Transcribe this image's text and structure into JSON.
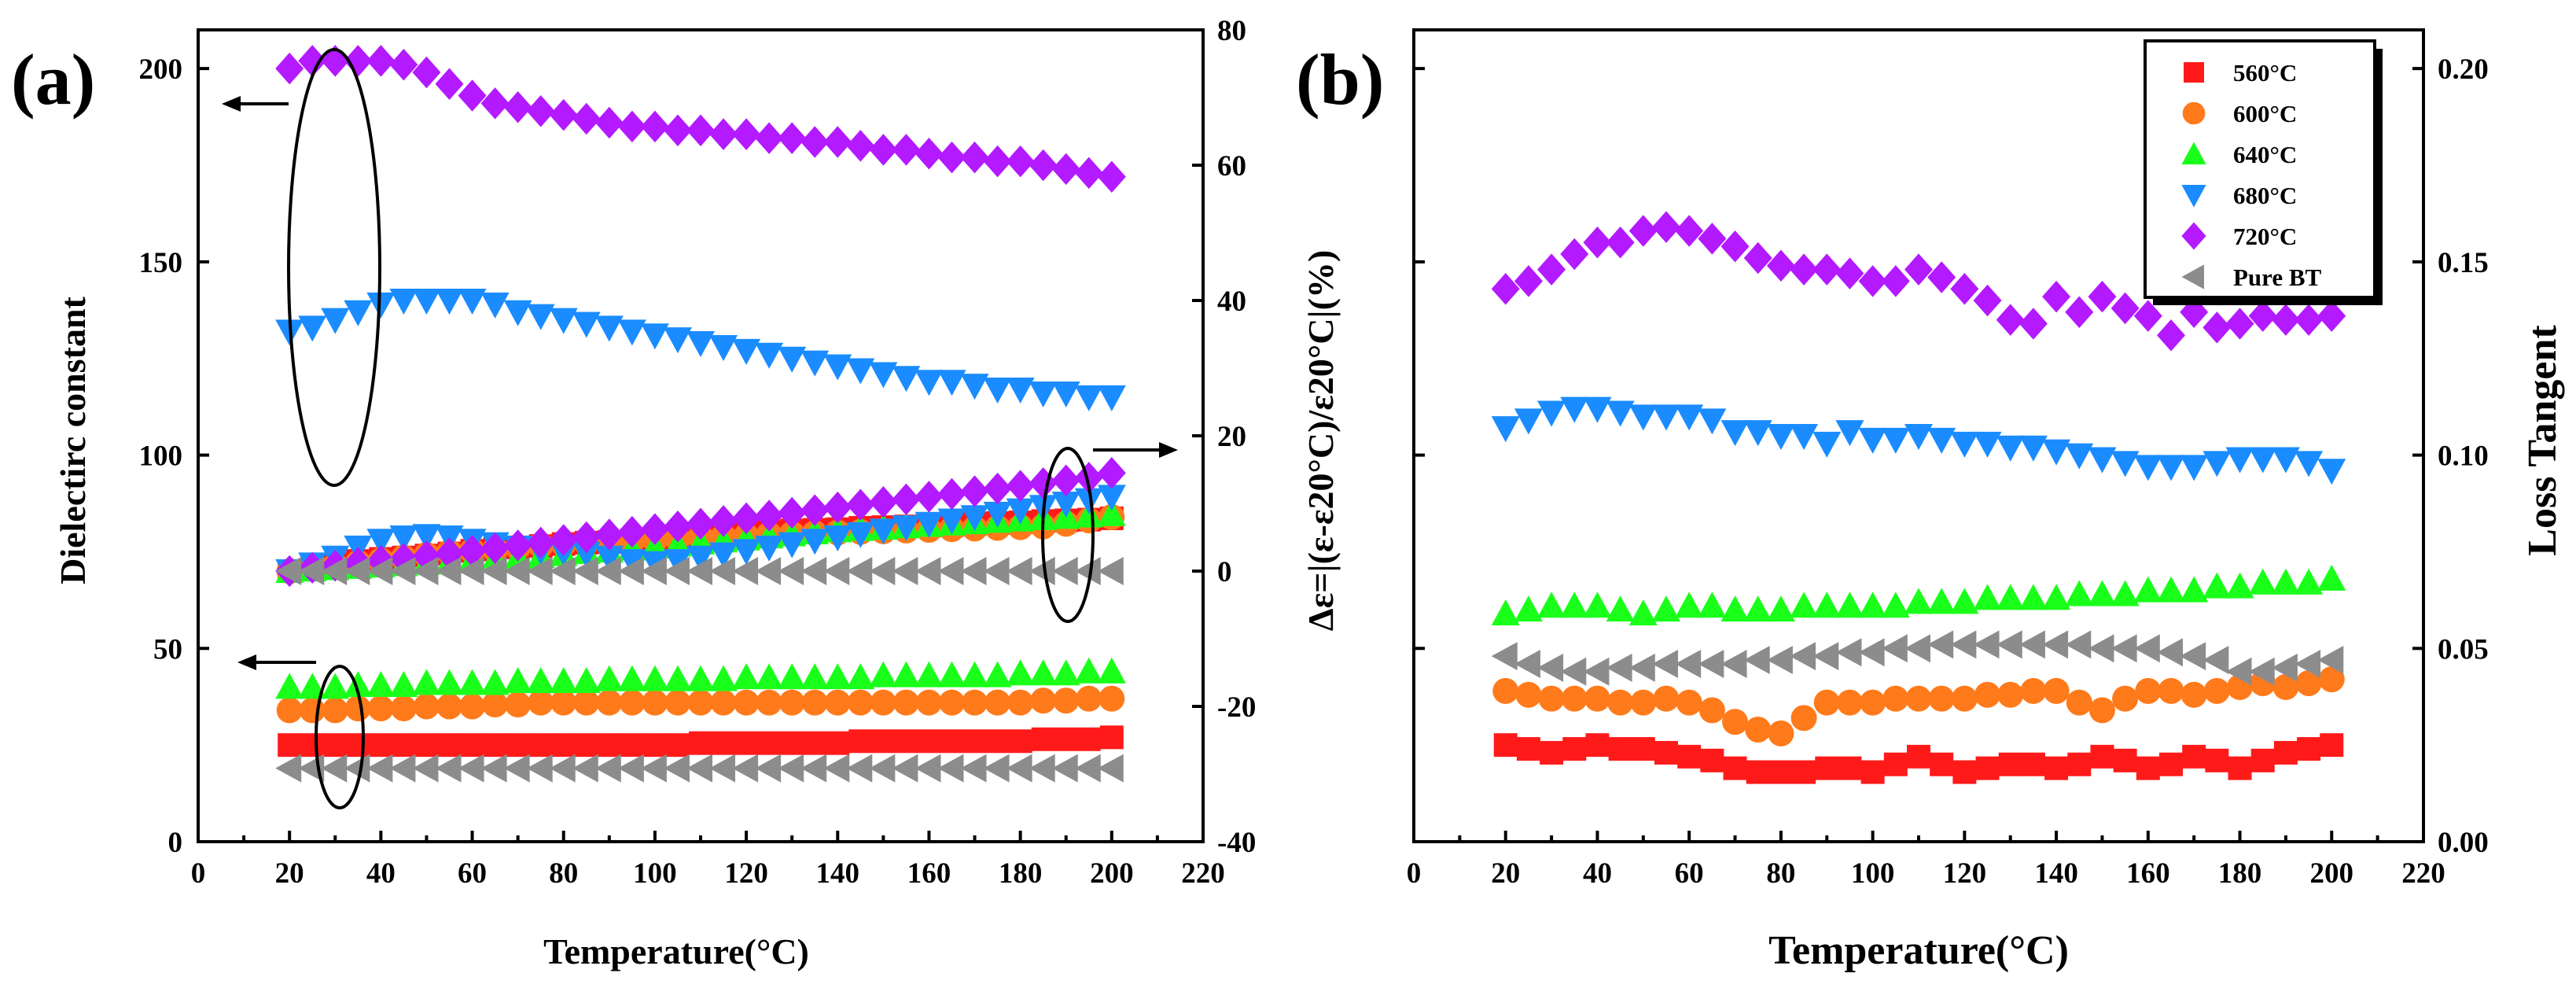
{
  "colors": {
    "560°C": "#ff1a1a",
    "600°C": "#ff7a1a",
    "640°C": "#1aff1a",
    "680°C": "#1a8cff",
    "720°C": "#b31aff",
    "Pure BT": "#8c8c8c"
  },
  "markers": {
    "560°C": "square",
    "600°C": "circle",
    "640°C": "triangle-up",
    "680°C": "triangle-down",
    "720°C": "diamond",
    "Pure BT": "triangle-left"
  },
  "chart_data": [
    {
      "type": "scatter",
      "panel_label": "(a)",
      "xlabel": "Temperature(°C)",
      "ylabel": "Dielectirc constant",
      "y2label": "Δε=|(ε-ε20°C)/ε20°C|(%)",
      "xlim": [
        0,
        220
      ],
      "ylim": [
        0,
        210
      ],
      "y2lim": [
        -40,
        80
      ],
      "x_ticks": [
        "0",
        "20",
        "40",
        "60",
        "80",
        "100",
        "120",
        "140",
        "160",
        "180",
        "200",
        "220"
      ],
      "y_ticks": [
        "0",
        "50",
        "100",
        "150",
        "200"
      ],
      "y2_ticks": [
        "-40",
        "-20",
        "0",
        "20",
        "40",
        "60",
        "80"
      ],
      "x": [
        20,
        25,
        30,
        35,
        40,
        45,
        50,
        55,
        60,
        65,
        70,
        75,
        80,
        85,
        90,
        95,
        100,
        105,
        110,
        115,
        120,
        125,
        130,
        135,
        140,
        145,
        150,
        155,
        160,
        165,
        170,
        175,
        180,
        185,
        190,
        195,
        200
      ],
      "series": [
        {
          "name": "560°C",
          "axis": "left",
          "values": [
            25,
            25,
            25,
            25,
            25,
            25,
            25,
            25,
            25,
            25,
            25,
            25,
            25,
            25,
            25,
            25,
            25,
            25,
            25.5,
            25.5,
            25.5,
            25.5,
            25.5,
            25.5,
            25.5,
            26,
            26,
            26,
            26,
            26,
            26,
            26,
            26,
            26.5,
            26.5,
            26.5,
            27
          ]
        },
        {
          "name": "600°C",
          "axis": "left",
          "values": [
            34,
            34,
            34,
            34.5,
            34.5,
            34.5,
            35,
            35,
            35,
            35.5,
            35.5,
            36,
            36,
            36,
            36,
            36,
            36,
            36,
            36,
            36,
            36,
            36,
            36,
            36,
            36,
            36,
            36,
            36,
            36,
            36,
            36,
            36,
            36,
            36.5,
            36.5,
            37,
            37
          ]
        },
        {
          "name": "640°C",
          "axis": "left",
          "values": [
            40,
            40,
            40,
            40.5,
            40.5,
            40.5,
            41,
            41,
            41,
            41,
            41.5,
            41.5,
            41.5,
            41.5,
            42,
            42,
            42,
            42,
            42,
            42,
            42.5,
            42.5,
            42.5,
            42.5,
            42.5,
            42.5,
            43,
            43,
            43,
            43,
            43,
            43,
            43.5,
            43.5,
            43.5,
            44,
            44
          ]
        },
        {
          "name": "680°C",
          "axis": "left",
          "values": [
            132,
            133,
            135,
            137,
            139,
            140,
            140,
            140,
            140,
            139,
            137,
            136,
            135,
            134,
            133,
            132,
            131,
            130,
            129,
            128,
            127,
            126,
            125,
            124,
            123,
            122,
            121,
            120,
            119,
            119,
            118,
            117,
            117,
            116,
            116,
            115,
            115
          ]
        },
        {
          "name": "720°C",
          "axis": "left",
          "values": [
            200,
            202,
            202,
            202,
            202,
            201,
            199,
            196,
            193,
            191,
            190,
            189,
            188,
            187,
            186,
            185,
            185,
            184,
            184,
            183,
            183,
            182,
            182,
            181,
            181,
            180,
            179,
            179,
            178,
            177,
            177,
            176,
            176,
            175,
            174,
            173,
            172
          ]
        },
        {
          "name": "Pure BT",
          "axis": "left",
          "values": [
            19,
            19,
            19,
            19,
            19,
            19,
            19,
            19,
            19,
            19,
            19,
            19,
            19,
            19,
            19,
            19,
            19,
            19,
            19,
            19,
            19,
            19,
            19,
            19,
            19,
            19,
            19,
            19,
            19,
            19,
            19,
            19,
            19,
            19,
            19,
            19,
            19
          ]
        },
        {
          "name": "Δε 560°C",
          "axis": "right",
          "values": [
            0,
            0.5,
            1,
            1.5,
            1.8,
            2,
            2.3,
            2.6,
            3,
            3.2,
            3.5,
            3.7,
            4,
            4.2,
            4.3,
            4.5,
            4.7,
            5,
            5.2,
            5.4,
            5.6,
            5.8,
            6,
            6.1,
            6.2,
            6.4,
            6.5,
            6.6,
            6.7,
            6.8,
            7,
            7.1,
            7.2,
            7.4,
            7.5,
            7.6,
            7.8
          ]
        },
        {
          "name": "Δε 600°C",
          "axis": "right",
          "values": [
            0,
            0.4,
            0.8,
            1.2,
            1.6,
            2,
            2.4,
            2.8,
            3,
            3.2,
            3.5,
            3.8,
            4,
            4.2,
            4.4,
            4.5,
            4.6,
            4.8,
            5,
            5.1,
            5.2,
            5.4,
            5.5,
            5.6,
            5.7,
            5.8,
            5.9,
            6,
            6.1,
            6.2,
            6.3,
            6.4,
            6.5,
            6.6,
            7,
            7.5,
            8
          ]
        },
        {
          "name": "Δε 640°C",
          "axis": "right",
          "values": [
            0,
            0.2,
            0.4,
            0.6,
            0.8,
            1,
            1.2,
            1.4,
            1.6,
            1.8,
            2,
            2.2,
            2.5,
            2.8,
            3,
            3.3,
            3.6,
            3.9,
            4.2,
            4.5,
            4.8,
            5.1,
            5.4,
            5.7,
            6,
            6.2,
            6.4,
            6.6,
            6.8,
            7,
            7.2,
            7.4,
            7.6,
            7.8,
            8,
            8.2,
            8.4
          ]
        },
        {
          "name": "Δε 680°C",
          "axis": "right",
          "values": [
            0,
            1,
            2,
            3.5,
            4.5,
            5,
            5.2,
            5,
            4.5,
            4,
            3.5,
            3,
            2.8,
            2.6,
            2,
            1.5,
            1.2,
            1.5,
            2,
            2.5,
            3,
            3.5,
            4,
            4.5,
            5,
            5.5,
            6,
            6.5,
            7,
            7.5,
            8,
            8.5,
            9,
            9.5,
            10,
            10.5,
            11
          ]
        },
        {
          "name": "Δε 720°C",
          "axis": "right",
          "values": [
            0,
            0.5,
            0.8,
            1.2,
            1.5,
            1.8,
            2.2,
            2.6,
            3,
            3.4,
            3.8,
            4.2,
            4.6,
            5,
            5.4,
            5.8,
            6.2,
            6.6,
            7,
            7.4,
            7.8,
            8.2,
            8.6,
            9,
            9.4,
            9.8,
            10.2,
            10.6,
            11,
            11.4,
            11.8,
            12.2,
            12.6,
            13,
            13.4,
            13.8,
            14.5
          ]
        },
        {
          "name": "Δε Pure BT",
          "axis": "right",
          "values": [
            0,
            0,
            0,
            0,
            0,
            0,
            0,
            0,
            0,
            0,
            0,
            0,
            0,
            0,
            0,
            0,
            0,
            0,
            0,
            0,
            0,
            0,
            0,
            0,
            0,
            0,
            0,
            0,
            0,
            0,
            0,
            0,
            0,
            0,
            0,
            0,
            0
          ]
        }
      ]
    },
    {
      "type": "scatter",
      "panel_label": "(b)",
      "xlabel": "Temperature(°C)",
      "ylabel": "Loss Tangent",
      "xlim": [
        0,
        220
      ],
      "ylim": [
        0,
        0.21
      ],
      "x_ticks": [
        "0",
        "20",
        "40",
        "60",
        "80",
        "100",
        "120",
        "140",
        "160",
        "180",
        "200",
        "220"
      ],
      "y_ticks": [
        "0.00",
        "0.05",
        "0.10",
        "0.15",
        "0.20"
      ],
      "legend": [
        "560°C",
        "600°C",
        "640°C",
        "680°C",
        "720°C",
        "Pure BT"
      ],
      "legend_position": "top-right",
      "x": [
        20,
        25,
        30,
        35,
        40,
        45,
        50,
        55,
        60,
        65,
        70,
        75,
        80,
        85,
        90,
        95,
        100,
        105,
        110,
        115,
        120,
        125,
        130,
        135,
        140,
        145,
        150,
        155,
        160,
        165,
        170,
        175,
        180,
        185,
        190,
        195,
        200
      ],
      "series": [
        {
          "name": "560°C",
          "values": [
            0.025,
            0.024,
            0.023,
            0.024,
            0.025,
            0.024,
            0.024,
            0.023,
            0.022,
            0.021,
            0.019,
            0.018,
            0.018,
            0.018,
            0.019,
            0.019,
            0.018,
            0.02,
            0.022,
            0.02,
            0.018,
            0.019,
            0.02,
            0.02,
            0.019,
            0.02,
            0.022,
            0.021,
            0.019,
            0.02,
            0.022,
            0.021,
            0.019,
            0.021,
            0.023,
            0.024,
            0.025
          ]
        },
        {
          "name": "600°C",
          "values": [
            0.039,
            0.038,
            0.037,
            0.037,
            0.037,
            0.036,
            0.036,
            0.037,
            0.036,
            0.034,
            0.031,
            0.029,
            0.028,
            0.032,
            0.036,
            0.036,
            0.036,
            0.037,
            0.037,
            0.037,
            0.037,
            0.038,
            0.038,
            0.039,
            0.039,
            0.036,
            0.034,
            0.037,
            0.039,
            0.039,
            0.038,
            0.039,
            0.04,
            0.041,
            0.04,
            0.041,
            0.042
          ]
        },
        {
          "name": "640°C",
          "values": [
            0.059,
            0.06,
            0.061,
            0.061,
            0.061,
            0.06,
            0.059,
            0.06,
            0.061,
            0.061,
            0.06,
            0.06,
            0.06,
            0.061,
            0.061,
            0.061,
            0.061,
            0.061,
            0.062,
            0.062,
            0.062,
            0.063,
            0.063,
            0.063,
            0.063,
            0.064,
            0.064,
            0.064,
            0.065,
            0.065,
            0.065,
            0.066,
            0.066,
            0.067,
            0.067,
            0.067,
            0.068
          ]
        },
        {
          "name": "680°C",
          "values": [
            0.107,
            0.109,
            0.111,
            0.112,
            0.112,
            0.111,
            0.11,
            0.11,
            0.11,
            0.109,
            0.106,
            0.106,
            0.105,
            0.105,
            0.103,
            0.106,
            0.104,
            0.104,
            0.105,
            0.104,
            0.103,
            0.103,
            0.102,
            0.102,
            0.101,
            0.1,
            0.099,
            0.098,
            0.097,
            0.097,
            0.097,
            0.098,
            0.099,
            0.099,
            0.099,
            0.098,
            0.096
          ]
        },
        {
          "name": "720°C",
          "values": [
            0.143,
            0.145,
            0.148,
            0.152,
            0.155,
            0.155,
            0.158,
            0.159,
            0.158,
            0.156,
            0.154,
            0.151,
            0.149,
            0.148,
            0.148,
            0.147,
            0.145,
            0.145,
            0.148,
            0.146,
            0.143,
            0.14,
            0.135,
            0.134,
            0.141,
            0.137,
            0.141,
            0.138,
            0.136,
            0.131,
            0.137,
            0.133,
            0.134,
            0.136,
            0.135,
            0.135,
            0.136
          ]
        },
        {
          "name": "Pure BT",
          "values": [
            0.048,
            0.046,
            0.045,
            0.044,
            0.044,
            0.045,
            0.045,
            0.046,
            0.046,
            0.046,
            0.046,
            0.047,
            0.047,
            0.048,
            0.048,
            0.049,
            0.049,
            0.05,
            0.05,
            0.051,
            0.051,
            0.051,
            0.051,
            0.051,
            0.051,
            0.051,
            0.05,
            0.05,
            0.05,
            0.049,
            0.048,
            0.047,
            0.044,
            0.044,
            0.045,
            0.046,
            0.047
          ]
        }
      ]
    }
  ]
}
